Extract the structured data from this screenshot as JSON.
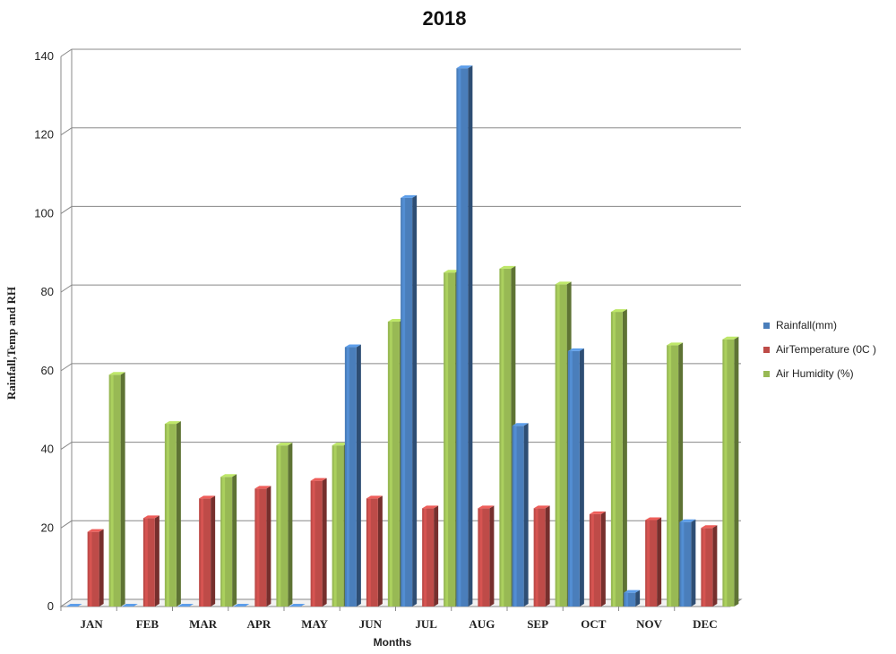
{
  "chart_data": {
    "type": "bar",
    "title": "2018",
    "xlabel": "Months",
    "ylabel": "Rainfall,Temp  and RH",
    "categories": [
      "JAN",
      "FEB",
      "MAR",
      "APR",
      "MAY",
      "JUN",
      "JUL",
      "AUG",
      "SEP",
      "OCT",
      "NOV",
      "DEC"
    ],
    "yticks": [
      "0",
      "20",
      "40",
      "60",
      "80",
      "100",
      "120",
      "140"
    ],
    "ylim": [
      0,
      140
    ],
    "grid": true,
    "legend_position": "right",
    "series": [
      {
        "name": "Rainfall(mm)",
        "color": "#4a7ebb",
        "values": [
          0,
          0,
          0,
          0,
          0,
          66,
          104,
          137,
          46,
          65,
          3.5,
          21.5
        ]
      },
      {
        "name": "AirTemperature (0C )",
        "color": "#be4b48",
        "values": [
          19,
          22.5,
          27.5,
          30,
          32,
          27.5,
          25,
          25,
          25,
          23.5,
          22,
          20
        ]
      },
      {
        "name": "Air Humidity (%)",
        "color": "#98b954",
        "values": [
          59,
          46.5,
          33,
          41,
          41,
          72.5,
          85,
          86,
          82,
          75,
          66.5,
          68
        ]
      }
    ]
  }
}
